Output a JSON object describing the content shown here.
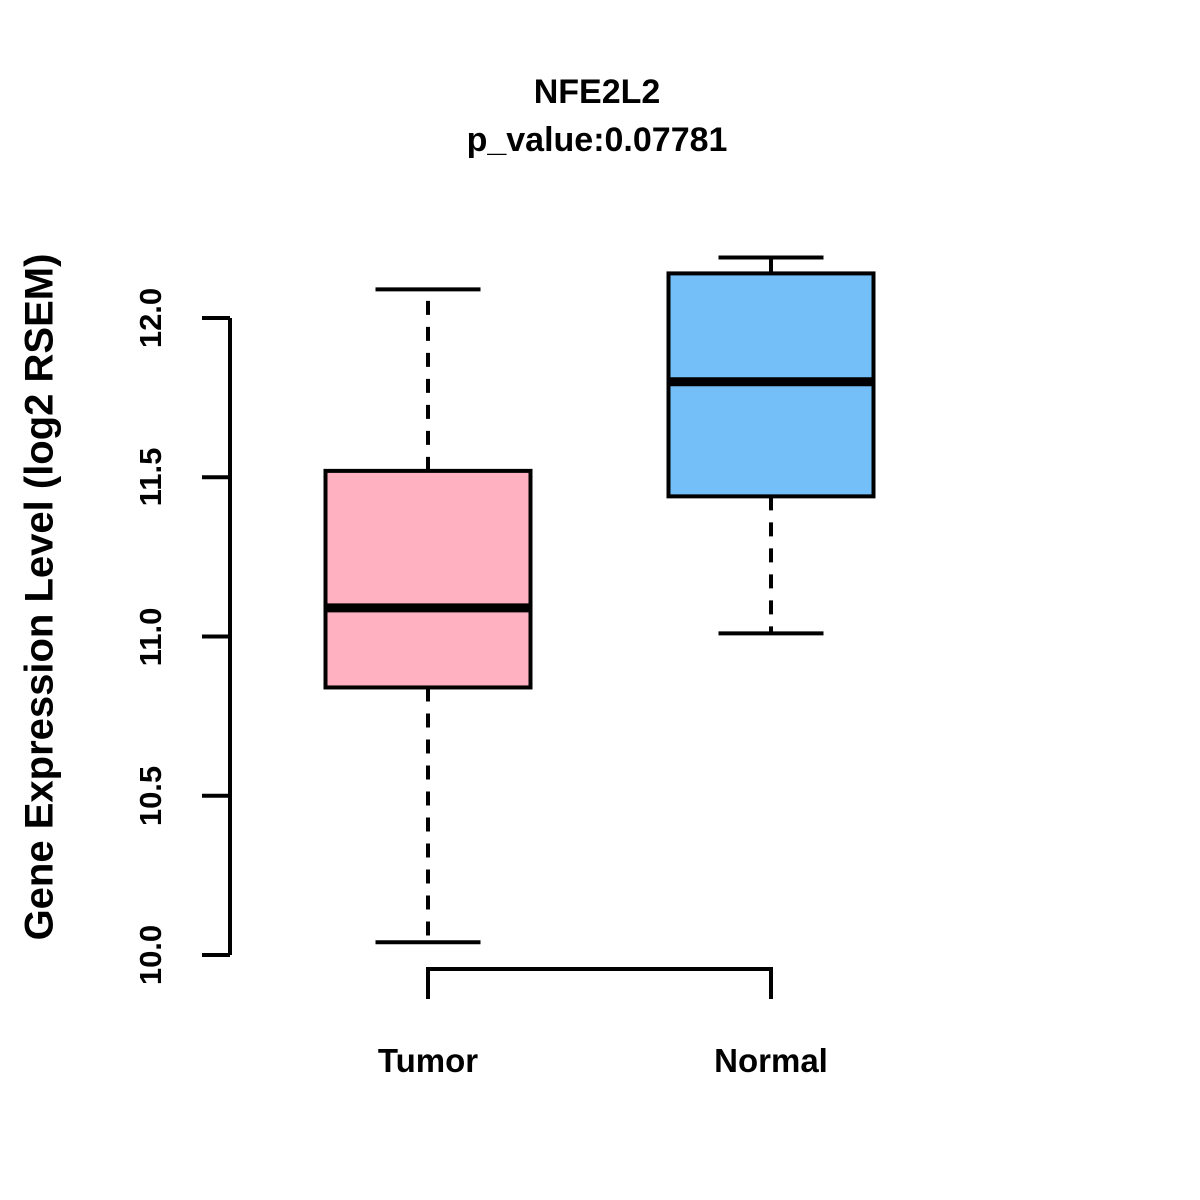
{
  "chart_data": {
    "type": "boxplot",
    "title": "NFE2L2",
    "subtitle": "p_value:0.07781",
    "ylabel": "Gene Expression Level (log2 RSEM)",
    "xlabel": "",
    "categories": [
      "Tumor",
      "Normal"
    ],
    "yticks": [
      {
        "value": 10.0,
        "label": "10.0"
      },
      {
        "value": 10.5,
        "label": "10.5"
      },
      {
        "value": 11.0,
        "label": "11.0"
      },
      {
        "value": 11.5,
        "label": "11.5"
      },
      {
        "value": 12.0,
        "label": "12.0"
      }
    ],
    "ylim": [
      9.9,
      12.25
    ],
    "grid": false,
    "legend_position": "none",
    "whisker_style": "dashed",
    "series": [
      {
        "name": "Tumor",
        "color": "#FFB0C1",
        "whisker_low": 10.04,
        "q1": 10.84,
        "median": 11.09,
        "q3": 11.52,
        "whisker_high": 12.09
      },
      {
        "name": "Normal",
        "color": "#75BFF8",
        "whisker_low": 11.01,
        "q1": 11.44,
        "median": 11.8,
        "q3": 12.14,
        "whisker_high": 12.19
      }
    ],
    "colors": {
      "stroke": "#000000",
      "background": "#FFFFFF",
      "tumor_fill": "#FFB0C1",
      "normal_fill": "#75BFF8"
    }
  }
}
